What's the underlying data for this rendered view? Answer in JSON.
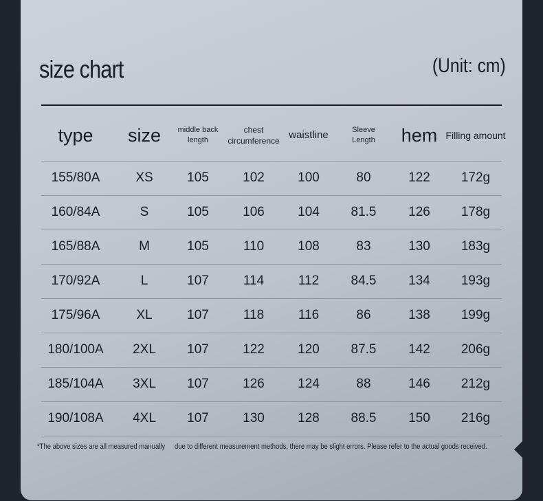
{
  "title": "size chart",
  "unit": "(Unit: cm)",
  "table": {
    "header": [
      "type",
      "size",
      "middle back length",
      "chest circumference",
      "waistline",
      "Sleeve Length",
      "hem",
      "Filling amount"
    ],
    "rows": [
      [
        "155/80A",
        "XS",
        "105",
        "102",
        "100",
        "80",
        "122",
        "172g"
      ],
      [
        "160/84A",
        "S",
        "105",
        "106",
        "104",
        "81.5",
        "126",
        "178g"
      ],
      [
        "165/88A",
        "M",
        "105",
        "110",
        "108",
        "83",
        "130",
        "183g"
      ],
      [
        "170/92A",
        "L",
        "107",
        "114",
        "112",
        "84.5",
        "134",
        "193g"
      ],
      [
        "175/96A",
        "XL",
        "107",
        "118",
        "116",
        "86",
        "138",
        "199g"
      ],
      [
        "180/100A",
        "2XL",
        "107",
        "122",
        "120",
        "87.5",
        "142",
        "206g"
      ],
      [
        "185/104A",
        "3XL",
        "107",
        "126",
        "124",
        "88",
        "146",
        "212g"
      ],
      [
        "190/108A",
        "4XL",
        "107",
        "130",
        "128",
        "88.5",
        "150",
        "216g"
      ]
    ]
  },
  "footnote": [
    "*The above sizes are all measured manually",
    "due to different measurement methods, there may be slight errors. Please refer to the actual goods received."
  ]
}
